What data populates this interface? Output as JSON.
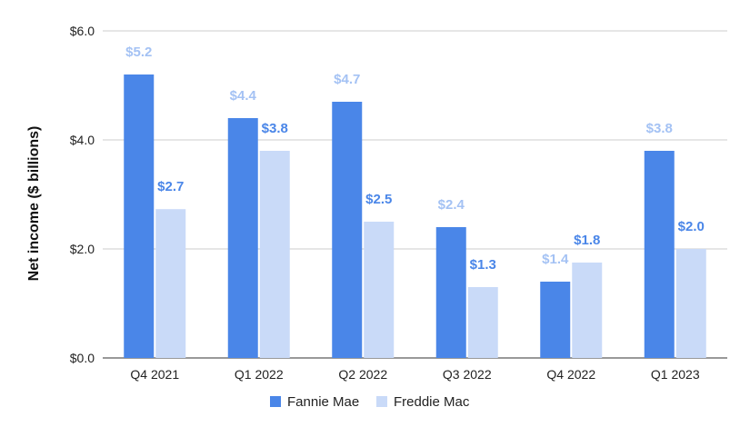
{
  "chart_data": {
    "type": "bar",
    "title": "",
    "xlabel": "",
    "ylabel": "Net income ($ billions)",
    "ylim": [
      0,
      6
    ],
    "yticks": [
      0,
      2,
      4,
      6
    ],
    "ytick_labels": [
      "$0.0",
      "$2.0",
      "$4.0",
      "$6.0"
    ],
    "grid": true,
    "legend_position": "bottom",
    "categories": [
      "Q4 2021",
      "Q1 2022",
      "Q2 2022",
      "Q3 2022",
      "Q4 2022",
      "Q1 2023"
    ],
    "series": [
      {
        "name": "Fannie Mae",
        "color": "#4a86e8",
        "values": [
          5.2,
          4.4,
          4.7,
          2.4,
          1.4,
          3.8
        ],
        "labels": [
          "$5.2",
          "$4.4",
          "$4.7",
          "$2.4",
          "$1.4",
          "$3.8"
        ]
      },
      {
        "name": "Freddie Mac",
        "color": "#c9daf8",
        "values": [
          2.73,
          3.8,
          2.5,
          1.3,
          1.75,
          2.0
        ],
        "labels": [
          "$2.7",
          "$3.8",
          "$2.5",
          "$1.3",
          "$1.8",
          "$2.0"
        ]
      }
    ],
    "label_colors": {
      "Fannie Mae": "#a4c2f4",
      "Freddie Mac": "#4a86e8"
    }
  }
}
